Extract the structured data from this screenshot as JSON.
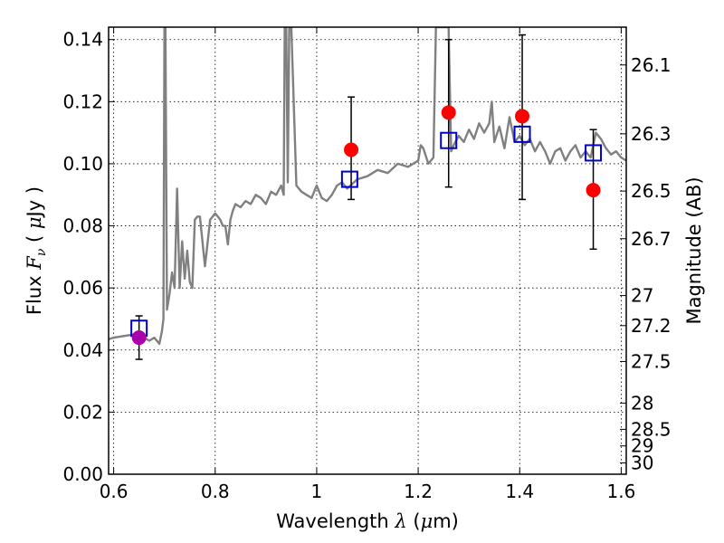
{
  "chart_data": {
    "type": "line",
    "xlabel": "Wavelength  λ (μm)",
    "ylabel": "Flux  Fν ( μJy )",
    "ylabel_right": "Magnitude (AB)",
    "xlim": [
      0.59,
      1.61
    ],
    "ylim": [
      0.0,
      0.144
    ],
    "grid": true,
    "x_ticks": [
      {
        "v": 0.6,
        "label": "0.6"
      },
      {
        "v": 0.8,
        "label": "0.8"
      },
      {
        "v": 1.0,
        "label": "1"
      },
      {
        "v": 1.2,
        "label": "1.2"
      },
      {
        "v": 1.4,
        "label": "1.4"
      },
      {
        "v": 1.6,
        "label": "1.6"
      }
    ],
    "y_ticks": [
      {
        "v": 0.0,
        "label": "0.00"
      },
      {
        "v": 0.02,
        "label": "0.02"
      },
      {
        "v": 0.04,
        "label": "0.04"
      },
      {
        "v": 0.06,
        "label": "0.06"
      },
      {
        "v": 0.08,
        "label": "0.08"
      },
      {
        "v": 0.1,
        "label": "0.10"
      },
      {
        "v": 0.12,
        "label": "0.12"
      },
      {
        "v": 0.14,
        "label": "0.14"
      }
    ],
    "mag_ticks": [
      {
        "mag": 26.1,
        "label": "26.1"
      },
      {
        "mag": 26.3,
        "label": "26.3"
      },
      {
        "mag": 26.5,
        "label": "26.5"
      },
      {
        "mag": 26.7,
        "label": "26.7"
      },
      {
        "mag": 27.0,
        "label": "27"
      },
      {
        "mag": 27.2,
        "label": "27.2"
      },
      {
        "mag": 27.5,
        "label": "27.5"
      },
      {
        "mag": 28.0,
        "label": "28"
      },
      {
        "mag": 28.5,
        "label": "28.5"
      },
      {
        "mag": 29.0,
        "label": "29"
      },
      {
        "mag": 30.0,
        "label": "30"
      }
    ],
    "series": [
      {
        "kind": "line",
        "color": "#808080",
        "x": [
          0.59,
          0.6,
          0.62,
          0.64,
          0.655,
          0.67,
          0.68,
          0.69,
          0.695,
          0.698,
          0.7,
          0.702,
          0.705,
          0.71,
          0.715,
          0.72,
          0.725,
          0.73,
          0.735,
          0.74,
          0.745,
          0.75,
          0.755,
          0.76,
          0.765,
          0.77,
          0.78,
          0.79,
          0.8,
          0.81,
          0.815,
          0.82,
          0.825,
          0.83,
          0.835,
          0.84,
          0.85,
          0.86,
          0.87,
          0.88,
          0.89,
          0.9,
          0.91,
          0.92,
          0.93,
          0.935,
          0.937,
          0.94,
          0.943,
          0.946,
          0.95,
          0.96,
          0.97,
          0.98,
          0.99,
          1.0,
          1.01,
          1.02,
          1.03,
          1.04,
          1.05,
          1.06,
          1.08,
          1.1,
          1.12,
          1.14,
          1.16,
          1.18,
          1.2,
          1.205,
          1.21,
          1.22,
          1.23,
          1.235,
          1.24,
          1.245,
          1.25,
          1.255,
          1.26,
          1.265,
          1.27,
          1.28,
          1.29,
          1.3,
          1.31,
          1.32,
          1.33,
          1.34,
          1.345,
          1.35,
          1.36,
          1.37,
          1.38,
          1.39,
          1.4,
          1.41,
          1.42,
          1.43,
          1.44,
          1.45,
          1.46,
          1.47,
          1.48,
          1.49,
          1.5,
          1.51,
          1.52,
          1.53,
          1.54,
          1.55,
          1.56,
          1.57,
          1.58,
          1.59,
          1.6,
          1.61
        ],
        "y": [
          0.0435,
          0.044,
          0.0445,
          0.045,
          0.0445,
          0.043,
          0.044,
          0.042,
          0.046,
          0.05,
          0.144,
          0.144,
          0.053,
          0.058,
          0.065,
          0.06,
          0.092,
          0.06,
          0.075,
          0.063,
          0.072,
          0.062,
          0.06,
          0.082,
          0.083,
          0.083,
          0.067,
          0.082,
          0.084,
          0.082,
          0.08,
          0.08,
          0.074,
          0.082,
          0.085,
          0.087,
          0.086,
          0.088,
          0.087,
          0.09,
          0.089,
          0.087,
          0.091,
          0.09,
          0.093,
          0.09,
          0.144,
          0.144,
          0.094,
          0.144,
          0.144,
          0.093,
          0.091,
          0.09,
          0.089,
          0.093,
          0.089,
          0.088,
          0.09,
          0.093,
          0.094,
          0.092,
          0.095,
          0.096,
          0.098,
          0.097,
          0.1,
          0.099,
          0.101,
          0.106,
          0.105,
          0.1,
          0.102,
          0.144,
          0.144,
          0.144,
          0.144,
          0.144,
          0.144,
          0.104,
          0.106,
          0.109,
          0.107,
          0.111,
          0.108,
          0.113,
          0.11,
          0.113,
          0.12,
          0.107,
          0.112,
          0.105,
          0.115,
          0.107,
          0.109,
          0.106,
          0.108,
          0.104,
          0.107,
          0.104,
          0.1,
          0.104,
          0.105,
          0.101,
          0.104,
          0.106,
          0.102,
          0.104,
          0.102,
          0.11,
          0.108,
          0.105,
          0.103,
          0.104,
          0.102,
          0.101
        ]
      },
      {
        "kind": "markers",
        "marker": "square",
        "color": "#0000cc",
        "x": [
          0.65,
          1.065,
          1.26,
          1.405,
          1.545
        ],
        "y": [
          0.047,
          0.095,
          0.1075,
          0.1095,
          0.1035
        ]
      },
      {
        "kind": "markers",
        "marker": "circle",
        "color": "#ff0000",
        "x": [
          1.068,
          1.26,
          1.405,
          1.545
        ],
        "y": [
          0.1045,
          0.1165,
          0.1153,
          0.0915
        ],
        "yerr_low": [
          0.0885,
          0.0925,
          0.0885,
          0.0725
        ],
        "yerr_high": [
          0.1215,
          0.14,
          0.1415,
          0.111
        ]
      },
      {
        "kind": "markers",
        "marker": "circle",
        "color": "#aa00aa",
        "x": [
          0.65
        ],
        "y": [
          0.044
        ],
        "yerr_low": [
          0.037
        ],
        "yerr_high": [
          0.051
        ]
      }
    ]
  }
}
